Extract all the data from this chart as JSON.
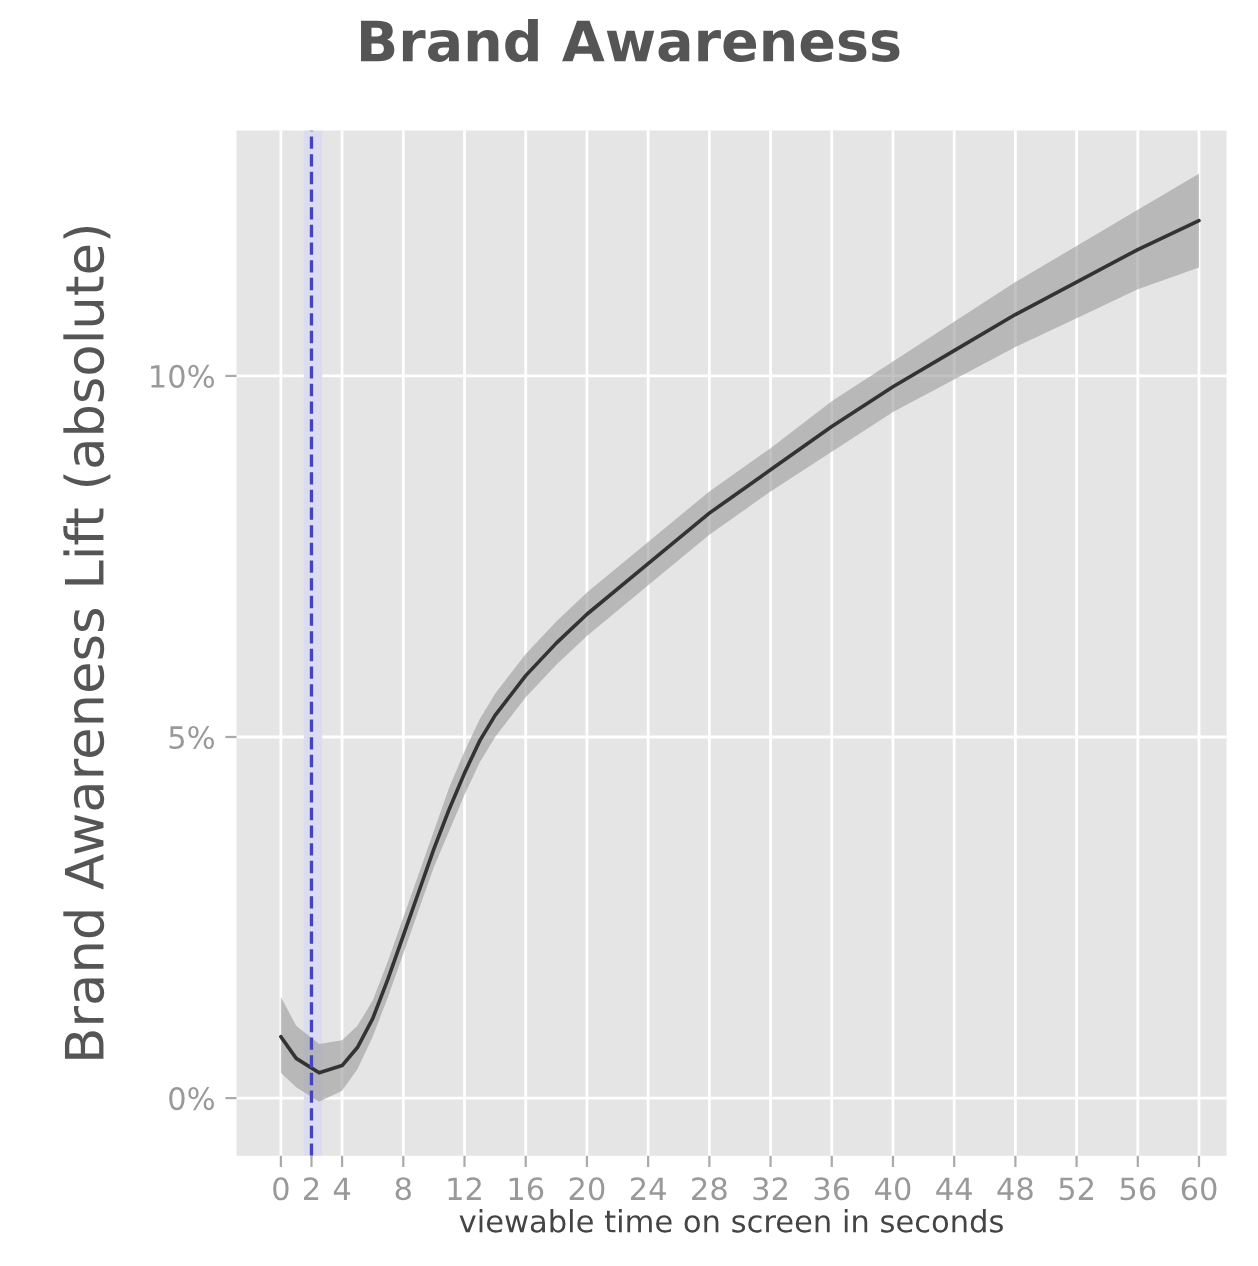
{
  "chart_data": {
    "type": "line",
    "title": "Brand Awareness",
    "xlabel": "viewable time on screen in seconds",
    "ylabel": "Brand Awareness Lift (absolute)",
    "x": [
      0,
      1,
      2.5,
      4,
      5,
      6,
      7,
      8,
      9,
      10,
      11,
      12,
      13,
      14,
      16,
      18,
      20,
      24,
      28,
      32,
      36,
      40,
      44,
      48,
      52,
      56,
      60
    ],
    "series": [
      {
        "color": "#333333",
        "values": [
          0.85,
          0.55,
          0.35,
          0.45,
          0.7,
          1.1,
          1.65,
          2.25,
          2.85,
          3.45,
          4.0,
          4.5,
          4.95,
          5.3,
          5.85,
          6.3,
          6.7,
          7.4,
          8.1,
          8.7,
          9.3,
          9.85,
          10.35,
          10.85,
          11.3,
          11.75,
          12.15
        ],
        "lower": [
          0.35,
          0.15,
          -0.05,
          0.1,
          0.4,
          0.85,
          1.4,
          2.0,
          2.6,
          3.2,
          3.7,
          4.2,
          4.65,
          5.0,
          5.55,
          6.0,
          6.4,
          7.1,
          7.8,
          8.4,
          8.95,
          9.5,
          9.95,
          10.4,
          10.8,
          11.2,
          11.5
        ],
        "upper": [
          1.4,
          1.0,
          0.75,
          0.8,
          1.0,
          1.35,
          1.9,
          2.5,
          3.1,
          3.7,
          4.3,
          4.8,
          5.25,
          5.6,
          6.15,
          6.6,
          7.0,
          7.7,
          8.4,
          9.0,
          9.65,
          10.2,
          10.75,
          11.3,
          11.8,
          12.3,
          12.8
        ]
      }
    ],
    "ref_lines": [
      {
        "axis": "x",
        "value": 2,
        "color": "#4444bb",
        "line_style": "dashed"
      }
    ],
    "bands": [
      {
        "axis": "x",
        "from": 1.5,
        "to": 2.7,
        "color": "#dcdcf0"
      }
    ],
    "xlim": [
      -2.9,
      61.8
    ],
    "ylim": [
      -0.8,
      13.4
    ],
    "xticks": [
      0,
      2,
      4,
      8,
      12,
      16,
      20,
      24,
      28,
      32,
      36,
      40,
      44,
      48,
      52,
      56,
      60
    ],
    "yticks": [
      {
        "value": 0,
        "label": "0%"
      },
      {
        "value": 5,
        "label": "5%"
      },
      {
        "value": 10,
        "label": "10%"
      }
    ],
    "grid": true
  }
}
